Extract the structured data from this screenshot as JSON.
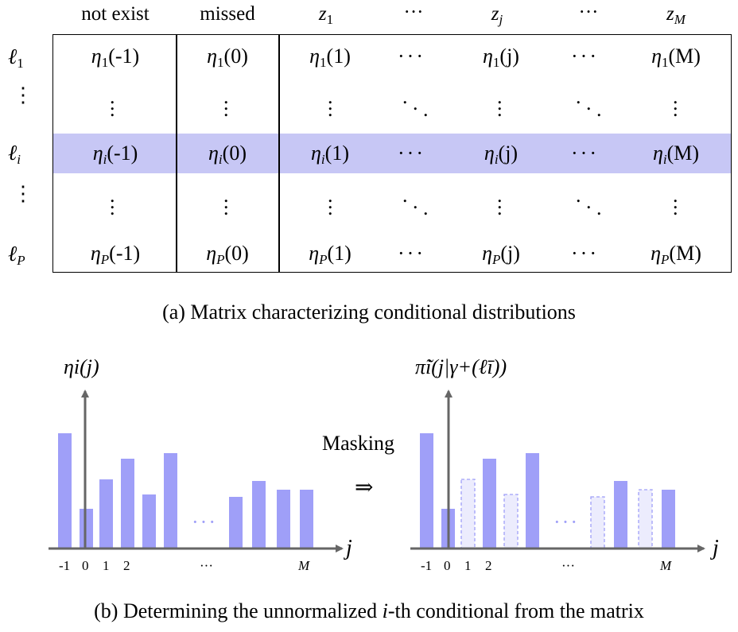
{
  "matrix": {
    "headers": [
      "not exist",
      "missed",
      "z1",
      "···",
      "zj",
      "···",
      "zM"
    ],
    "header_math": {
      "z1_base": "z",
      "z1_sub": "1",
      "zj_base": "z",
      "zj_sub": "j",
      "zM_base": "z",
      "zM_sub": "M"
    },
    "row_labels": [
      {
        "base": "ℓ",
        "sub": "1"
      },
      {
        "base": "⋮",
        "sub": ""
      },
      {
        "base": "ℓ",
        "sub": "i"
      },
      {
        "base": "⋮",
        "sub": ""
      },
      {
        "base": "ℓ",
        "sub": "P"
      }
    ],
    "rows": [
      {
        "sub": "1",
        "cells": [
          "(-1)",
          "(0)",
          "(1)",
          "(j)",
          "(M)"
        ]
      },
      {
        "sub": "i",
        "cells": [
          "(-1)",
          "(0)",
          "(1)",
          "(j)",
          "(M)"
        ]
      },
      {
        "sub": "P",
        "cells": [
          "(-1)",
          "(0)",
          "(1)",
          "(j)",
          "(M)"
        ]
      }
    ],
    "eta_symbol": "η",
    "ellipsis": "···",
    "highlight_color": "#c7c7f5"
  },
  "caption_a": "(a) Matrix characterizing conditional distributions",
  "caption_b_prefix": "(b) Determining the unnormalized ",
  "caption_b_var": "i",
  "caption_b_suffix": "-th conditional from the matrix",
  "middle_label": "Masking",
  "arrow_symbol": "⇒",
  "left_chart_title": "ηi(j)",
  "right_chart_title": "π̃i(j|γ+(ℓī))",
  "chart_data": [
    {
      "type": "bar",
      "title": "ηi(j)",
      "xlabel": "j",
      "categories": [
        "-1",
        "0",
        "1",
        "2",
        "",
        "",
        "",
        "…",
        "",
        "",
        "",
        "M"
      ],
      "tick_labels": [
        "-1",
        "0",
        "1",
        "2",
        "···",
        "M"
      ],
      "values": [
        145,
        50,
        87,
        113,
        68,
        120,
        0,
        0,
        65,
        85,
        74,
        74
      ],
      "ellipsis_index": 7,
      "bar_color": "#9f9ff8"
    },
    {
      "type": "bar",
      "title": "π̃i(j|γ+(ℓī))",
      "xlabel": "j",
      "categories": [
        "-1",
        "0",
        "1",
        "2",
        "",
        "",
        "",
        "…",
        "",
        "",
        "",
        "M"
      ],
      "tick_labels": [
        "-1",
        "0",
        "1",
        "2",
        "···",
        "M"
      ],
      "values": [
        145,
        50,
        87,
        113,
        68,
        120,
        0,
        0,
        65,
        85,
        74,
        74
      ],
      "masked": [
        false,
        false,
        true,
        false,
        true,
        false,
        false,
        false,
        true,
        false,
        true,
        false
      ],
      "ellipsis_index": 7,
      "bar_color": "#9f9ff8",
      "masked_color": "#ececfd"
    }
  ]
}
